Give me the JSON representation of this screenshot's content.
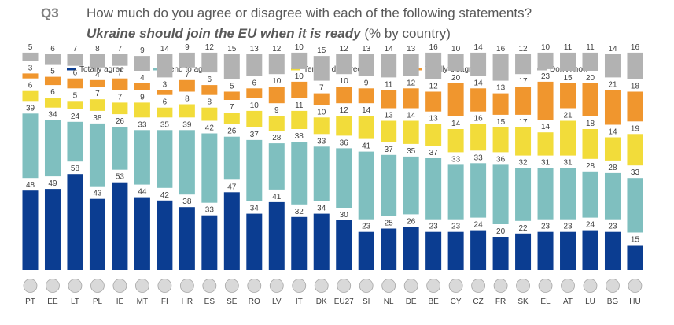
{
  "header": {
    "qnum": "Q3",
    "question": "How much do you agree or disagree with each of the following statements?",
    "statement": "Ukraine should join the EU when it is ready",
    "unit": "(% by country)"
  },
  "colors": {
    "totally_agree": "#0b3d91",
    "tend_to_agree": "#7fbfbf",
    "tend_to_disagree": "#f2dc3a",
    "totally_disagree": "#f0962e",
    "dont_know": "#b2b2b2"
  },
  "chart_data": {
    "type": "bar",
    "stacked": true,
    "legend_position": "top",
    "categories": [
      "PT",
      "EE",
      "LT",
      "PL",
      "IE",
      "MT",
      "FI",
      "HR",
      "ES",
      "SE",
      "RO",
      "LV",
      "IT",
      "DK",
      "EU27",
      "SI",
      "NL",
      "DE",
      "BE",
      "CY",
      "CZ",
      "FR",
      "SK",
      "EL",
      "AT",
      "LU",
      "BG",
      "HU"
    ],
    "series": [
      {
        "name": "Totally agree",
        "values": [
          48,
          49,
          58,
          43,
          53,
          44,
          42,
          38,
          33,
          47,
          34,
          41,
          32,
          34,
          30,
          23,
          25,
          26,
          23,
          23,
          24,
          20,
          22,
          23,
          23,
          24,
          23,
          15
        ]
      },
      {
        "name": "Tend to agree",
        "values": [
          39,
          34,
          24,
          38,
          26,
          33,
          35,
          39,
          42,
          26,
          37,
          28,
          38,
          33,
          36,
          41,
          37,
          35,
          37,
          33,
          33,
          36,
          32,
          31,
          31,
          28,
          28,
          33
        ]
      },
      {
        "name": "Tend to disagree",
        "values": [
          6,
          6,
          5,
          7,
          7,
          9,
          6,
          8,
          8,
          7,
          10,
          9,
          11,
          10,
          12,
          14,
          13,
          14,
          13,
          14,
          16,
          15,
          17,
          14,
          21,
          18,
          14,
          19
        ]
      },
      {
        "name": "Totally disagree",
        "values": [
          3,
          5,
          6,
          4,
          7,
          4,
          3,
          7,
          6,
          5,
          6,
          10,
          10,
          7,
          10,
          9,
          11,
          12,
          12,
          20,
          14,
          13,
          17,
          23,
          15,
          20,
          21,
          18
        ]
      },
      {
        "name": "Don't know",
        "values": [
          5,
          6,
          7,
          8,
          7,
          9,
          14,
          9,
          12,
          15,
          13,
          12,
          10,
          15,
          12,
          13,
          14,
          13,
          16,
          10,
          14,
          16,
          12,
          10,
          11,
          11,
          14,
          16
        ]
      }
    ]
  }
}
